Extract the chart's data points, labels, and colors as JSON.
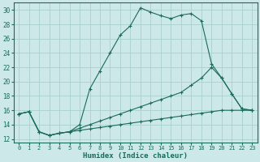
{
  "xlabel": "Humidex (Indice chaleur)",
  "bg_color": "#cce8e8",
  "grid_color": "#aacfcf",
  "line_color": "#1a6b5a",
  "xlim": [
    -0.5,
    23.5
  ],
  "ylim": [
    11.5,
    31.0
  ],
  "xticks": [
    0,
    1,
    2,
    3,
    4,
    5,
    6,
    7,
    8,
    9,
    10,
    11,
    12,
    13,
    14,
    15,
    16,
    17,
    18,
    19,
    20,
    21,
    22,
    23
  ],
  "yticks": [
    12,
    14,
    16,
    18,
    20,
    22,
    24,
    26,
    28,
    30
  ],
  "curve1_x": [
    0,
    1,
    2,
    3,
    4,
    5,
    6,
    7,
    8,
    9,
    10,
    11,
    12,
    13,
    14,
    15,
    16,
    17,
    18,
    19,
    20,
    21,
    22,
    23
  ],
  "curve1_y": [
    15.5,
    15.8,
    13.0,
    12.5,
    12.8,
    13.0,
    14.0,
    19.0,
    21.5,
    24.0,
    26.5,
    27.8,
    30.3,
    29.7,
    29.2,
    28.8,
    29.3,
    29.5,
    28.5,
    22.5,
    20.5,
    18.3,
    16.2,
    16.0
  ],
  "curve2_x": [
    0,
    1,
    2,
    3,
    4,
    5,
    6,
    7,
    8,
    9,
    10,
    11,
    12,
    13,
    14,
    15,
    16,
    17,
    18,
    19,
    20,
    21,
    22,
    23
  ],
  "curve2_y": [
    15.5,
    15.8,
    13.0,
    12.5,
    12.8,
    13.0,
    13.5,
    14.0,
    14.5,
    15.0,
    15.5,
    16.0,
    16.5,
    17.0,
    17.5,
    18.0,
    18.5,
    19.5,
    20.5,
    22.0,
    20.5,
    18.3,
    16.2,
    16.0
  ],
  "curve3_x": [
    0,
    1,
    2,
    3,
    4,
    5,
    6,
    7,
    8,
    9,
    10,
    11,
    12,
    13,
    14,
    15,
    16,
    17,
    18,
    19,
    20,
    21,
    22,
    23
  ],
  "curve3_y": [
    15.5,
    15.8,
    13.0,
    12.5,
    12.8,
    13.0,
    13.2,
    13.4,
    13.6,
    13.8,
    14.0,
    14.2,
    14.4,
    14.6,
    14.8,
    15.0,
    15.2,
    15.4,
    15.6,
    15.8,
    16.0,
    16.0,
    16.0,
    16.0
  ]
}
